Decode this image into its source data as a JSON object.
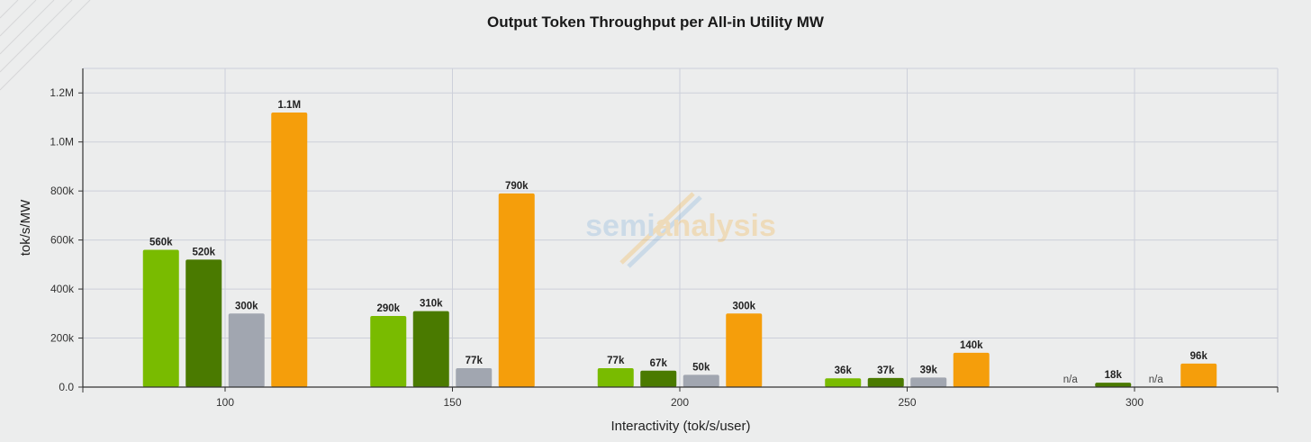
{
  "chart_data": {
    "type": "bar",
    "title": "Output Token Throughput per All-in Utility MW",
    "xlabel": "Interactivity (tok/s/user)",
    "ylabel": "tok/s/MW",
    "categories": [
      "100",
      "150",
      "200",
      "250",
      "300"
    ],
    "ylim": [
      0,
      1300000
    ],
    "yticks": [
      {
        "value": 0,
        "label": "0.0"
      },
      {
        "value": 200000,
        "label": "200k"
      },
      {
        "value": 400000,
        "label": "400k"
      },
      {
        "value": 600000,
        "label": "600k"
      },
      {
        "value": 800000,
        "label": "800k"
      },
      {
        "value": 1000000,
        "label": "1.0M"
      },
      {
        "value": 1200000,
        "label": "1.2M"
      }
    ],
    "grid": true,
    "legend": "none",
    "series": [
      {
        "color": "#79bb00",
        "values": [
          560000,
          290000,
          77000,
          36000,
          null
        ],
        "labels": [
          "560k",
          "290k",
          "77k",
          "36k",
          "n/a"
        ]
      },
      {
        "color": "#4a7a00",
        "values": [
          520000,
          310000,
          67000,
          37000,
          18000
        ],
        "labels": [
          "520k",
          "310k",
          "67k",
          "37k",
          "18k"
        ]
      },
      {
        "color": "#a1a6b0",
        "values": [
          300000,
          77000,
          50000,
          39000,
          null
        ],
        "labels": [
          "300k",
          "77k",
          "50k",
          "39k",
          "n/a"
        ]
      },
      {
        "color": "#f59e0b",
        "values": [
          1120000,
          790000,
          300000,
          140000,
          96000
        ],
        "labels": [
          "1.1M",
          "790k",
          "300k",
          "140k",
          "96k"
        ]
      }
    ]
  },
  "watermark": {
    "part1": "semi",
    "part2": "analysis"
  }
}
